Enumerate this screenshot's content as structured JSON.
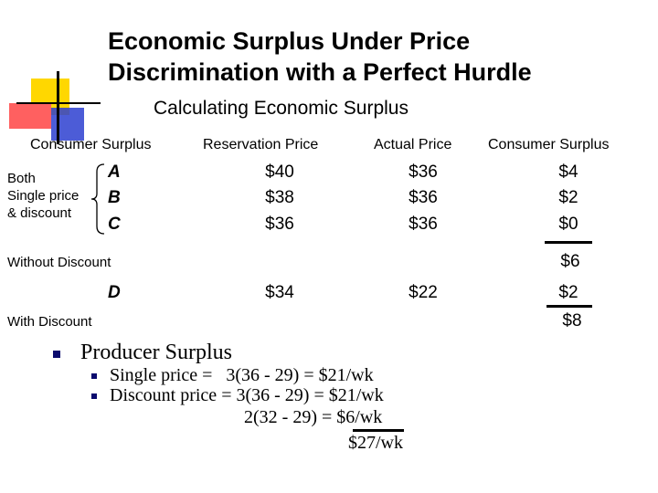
{
  "slide": {
    "title_line1": "Economic Surplus Under Price",
    "title_line2": "Discrimination with a Perfect Hurdle",
    "subtitle": "Calculating Economic Surplus"
  },
  "columns": {
    "left_header": "Consumer Surplus",
    "reservation_price": "Reservation Price",
    "actual_price": "Actual Price",
    "consumer_surplus": "Consumer Surplus"
  },
  "brace_label": {
    "line1": "Both",
    "line2": "Single price",
    "line3": "& discount"
  },
  "rows": [
    {
      "consumer": "A",
      "reservation": "$40",
      "actual": "$36",
      "surplus": "$4"
    },
    {
      "consumer": "B",
      "reservation": "$38",
      "actual": "$36",
      "surplus": "$2"
    },
    {
      "consumer": "C",
      "reservation": "$36",
      "actual": "$36",
      "surplus": "$0"
    }
  ],
  "without_discount": {
    "label": "Without Discount",
    "total": "$6"
  },
  "row_d": {
    "consumer": "D",
    "reservation": "$34",
    "actual": "$22",
    "surplus": "$2"
  },
  "with_discount": {
    "label": "With Discount",
    "total": "$8"
  },
  "producer": {
    "heading": "Producer Surplus",
    "line1": "Single price =   3(36 - 29) = $21/wk",
    "line2": "Discount price = 3(36 - 29) = $21/wk",
    "line3": "2(32 - 29) = $6/wk",
    "total": "$27/wk"
  },
  "colors": {
    "logo_yellow": "#ffd700",
    "logo_red": "#ff3b3b",
    "logo_blue": "#2433c8",
    "bullet_navy": "#0b0b6e"
  }
}
